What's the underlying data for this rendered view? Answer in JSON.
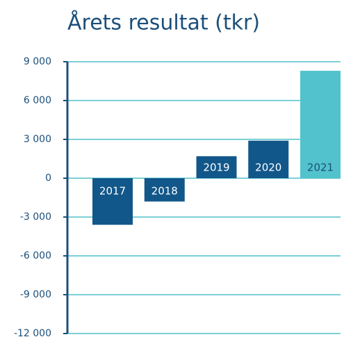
{
  "chart_data": {
    "type": "bar",
    "title": "Årets resultat (tkr)",
    "categories": [
      "2017",
      "2018",
      "2019",
      "2020",
      "2021"
    ],
    "values": [
      -3600,
      -1800,
      1700,
      2900,
      8300
    ],
    "colors": [
      "#12578a",
      "#12578a",
      "#12578a",
      "#12578a",
      "#52c3cc"
    ],
    "label_colors": [
      "#ffffff",
      "#ffffff",
      "#ffffff",
      "#ffffff",
      "#1b4f7a"
    ],
    "ylim": [
      -12000,
      9000
    ],
    "yticks": [
      {
        "value": 9000,
        "label": "9 000"
      },
      {
        "value": 6000,
        "label": "6 000"
      },
      {
        "value": 3000,
        "label": "3 000"
      },
      0,
      {
        "value": -3000,
        "label": "-3 000"
      },
      {
        "value": -6000,
        "label": "-6 000"
      },
      {
        "value": -9000,
        "label": "-9 000"
      },
      {
        "value": -12000,
        "label": "-12 000"
      }
    ],
    "grid": true
  }
}
